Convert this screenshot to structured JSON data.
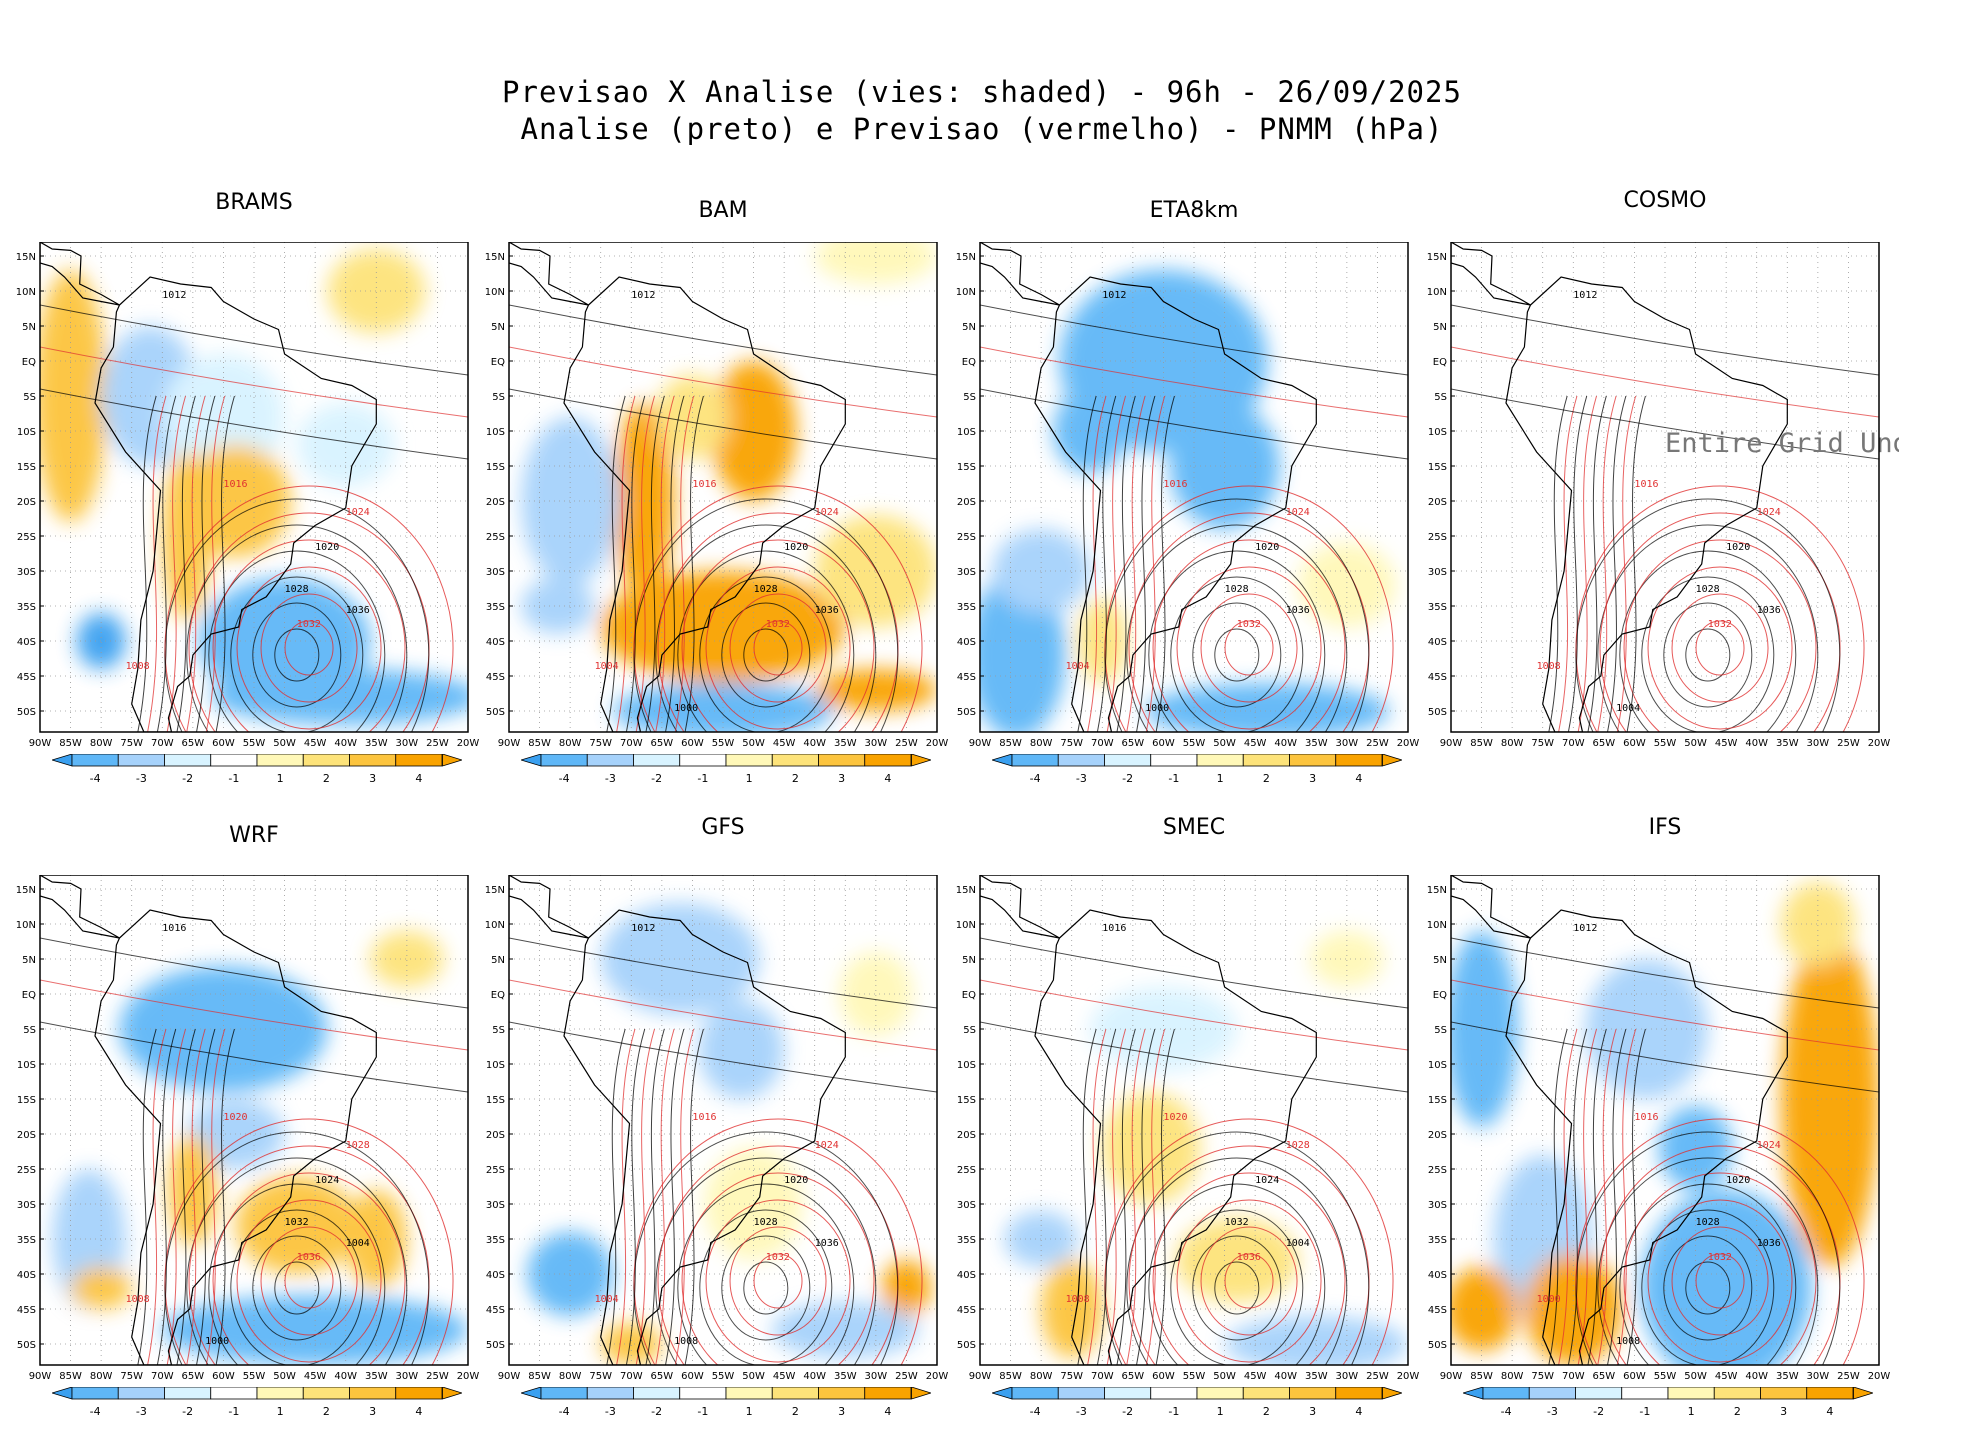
{
  "header": {
    "line1": "Previsao X Analise (vies: shaded) - 96h - 26/09/2025",
    "line2": "Analise (preto) e Previsao (vermelho) - PNMM (hPa)"
  },
  "colors": {
    "bias": [
      "#3aa0f0",
      "#5fb7f7",
      "#a6d2fb",
      "#d8f3ff",
      "#ffffff",
      "#fff8b8",
      "#fde37a",
      "#fcc43e",
      "#f9a300"
    ],
    "analysis_contour": "#000000",
    "forecast_contour": "#e03030"
  },
  "chart_data": [
    {
      "type": "heatmap",
      "title": "BRAMS",
      "show_bias": true,
      "bias_pattern": "warm",
      "isobar_labels": [
        "1012",
        "1016",
        "1020",
        "1024",
        "1028",
        "1032",
        "1036",
        "1008"
      ],
      "undefined_message": ""
    },
    {
      "type": "heatmap",
      "title": "BAM",
      "show_bias": true,
      "bias_pattern": "warm-south",
      "isobar_labels": [
        "1012",
        "1016",
        "1020",
        "1024",
        "1028",
        "1032",
        "1036",
        "1004",
        "1000"
      ],
      "undefined_message": ""
    },
    {
      "type": "heatmap",
      "title": "ETA8km",
      "show_bias": true,
      "bias_pattern": "cold-north",
      "isobar_labels": [
        "1012",
        "1016",
        "1020",
        "1024",
        "1028",
        "1032",
        "1036",
        "1004",
        "1000"
      ],
      "undefined_message": ""
    },
    {
      "type": "heatmap",
      "title": "COSMO",
      "show_bias": false,
      "bias_pattern": "none",
      "isobar_labels": [
        "1012",
        "1016",
        "1020",
        "1024",
        "1028",
        "1032",
        "1036",
        "1008",
        "1004"
      ],
      "undefined_message": "Entire Grid Und"
    },
    {
      "type": "heatmap",
      "title": "WRF",
      "show_bias": true,
      "bias_pattern": "cold-warm",
      "isobar_labels": [
        "1016",
        "1020",
        "1024",
        "1028",
        "1032",
        "1036",
        "1004",
        "1008",
        "1000"
      ],
      "undefined_message": ""
    },
    {
      "type": "heatmap",
      "title": "GFS",
      "show_bias": true,
      "bias_pattern": "mixed",
      "isobar_labels": [
        "1012",
        "1016",
        "1020",
        "1024",
        "1028",
        "1032",
        "1036",
        "1004",
        "1008"
      ],
      "undefined_message": ""
    },
    {
      "type": "heatmap",
      "title": "SMEC",
      "show_bias": true,
      "bias_pattern": "mixed-warm",
      "isobar_labels": [
        "1016",
        "1020",
        "1024",
        "1028",
        "1032",
        "1036",
        "1004",
        "1008"
      ],
      "undefined_message": ""
    },
    {
      "type": "heatmap",
      "title": "IFS",
      "show_bias": true,
      "bias_pattern": "ifs",
      "isobar_labels": [
        "1012",
        "1016",
        "1020",
        "1024",
        "1028",
        "1032",
        "1036",
        "1000",
        "1008"
      ],
      "undefined_message": ""
    }
  ],
  "axes": {
    "lat_ticks": [
      "15N",
      "10N",
      "5N",
      "EQ",
      "5S",
      "10S",
      "15S",
      "20S",
      "25S",
      "30S",
      "35S",
      "40S",
      "45S",
      "50S"
    ],
    "lon_ticks": [
      "90W",
      "85W",
      "80W",
      "75W",
      "70W",
      "65W",
      "60W",
      "55W",
      "50W",
      "45W",
      "40W",
      "35W",
      "30W",
      "25W",
      "20W"
    ],
    "lat_range": [
      -53,
      17
    ],
    "lon_range": [
      -90,
      -20
    ]
  },
  "colorbar": {
    "labels": [
      "-4",
      "-3",
      "-2",
      "-1",
      "1",
      "2",
      "3",
      "4"
    ],
    "min_color": "#3aa0f0",
    "max_color": "#f9a300"
  }
}
